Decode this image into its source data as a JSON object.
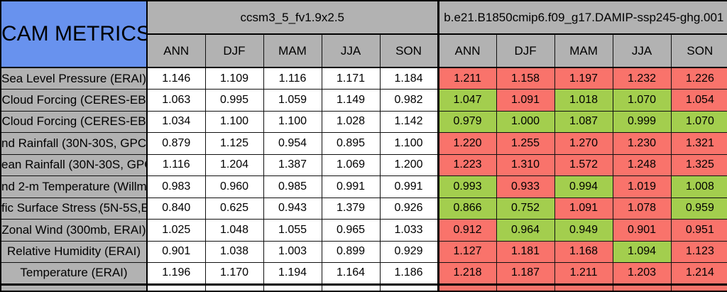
{
  "table": {
    "title": "CAM METRICS",
    "season_columns": [
      "ANN",
      "DJF",
      "MAM",
      "JJA",
      "SON"
    ],
    "groups": [
      {
        "name": "ccsm3_5_fv1.9x2.5"
      },
      {
        "name": "b.e21.B1850cmip6.f09_g17.DAMIP-ssp245-ghg.001"
      }
    ],
    "rows": [
      {
        "label": "Sea Level Pressure (ERAI)",
        "left": [
          "1.146",
          "1.109",
          "1.116",
          "1.171",
          "1.184"
        ],
        "right": [
          "1.211",
          "1.158",
          "1.197",
          "1.232",
          "1.226"
        ],
        "right_flags": [
          "red",
          "red",
          "red",
          "red",
          "red"
        ]
      },
      {
        "label": "Cloud Forcing (CERES-EB",
        "left": [
          "1.063",
          "0.995",
          "1.059",
          "1.149",
          "0.982"
        ],
        "right": [
          "1.047",
          "1.091",
          "1.018",
          "1.070",
          "1.054"
        ],
        "right_flags": [
          "green",
          "red",
          "green",
          "green",
          "red"
        ]
      },
      {
        "label": "Cloud Forcing (CERES-EB",
        "left": [
          "1.034",
          "1.100",
          "1.100",
          "1.028",
          "1.142"
        ],
        "right": [
          "0.979",
          "1.000",
          "1.087",
          "0.999",
          "1.070"
        ],
        "right_flags": [
          "green",
          "green",
          "green",
          "green",
          "green"
        ]
      },
      {
        "label": "nd Rainfall (30N-30S, GPC",
        "left": [
          "0.879",
          "1.125",
          "0.954",
          "0.895",
          "1.100"
        ],
        "right": [
          "1.220",
          "1.255",
          "1.270",
          "1.230",
          "1.321"
        ],
        "right_flags": [
          "red",
          "red",
          "red",
          "red",
          "red"
        ]
      },
      {
        "label": "ean Rainfall (30N-30S, GPC",
        "left": [
          "1.116",
          "1.204",
          "1.387",
          "1.069",
          "1.200"
        ],
        "right": [
          "1.223",
          "1.310",
          "1.572",
          "1.248",
          "1.325"
        ],
        "right_flags": [
          "red",
          "red",
          "red",
          "red",
          "red"
        ]
      },
      {
        "label": "nd 2-m Temperature (Willm",
        "left": [
          "0.983",
          "0.960",
          "0.985",
          "0.991",
          "0.991"
        ],
        "right": [
          "0.993",
          "0.933",
          "0.994",
          "1.019",
          "1.008"
        ],
        "right_flags": [
          "green",
          "red",
          "green",
          "red",
          "green"
        ]
      },
      {
        "label": "fic Surface Stress (5N-5S,E",
        "left": [
          "0.840",
          "0.625",
          "0.943",
          "1.379",
          "0.926"
        ],
        "right": [
          "0.866",
          "0.752",
          "1.091",
          "1.078",
          "0.959"
        ],
        "right_flags": [
          "green",
          "green",
          "red",
          "red",
          "green"
        ]
      },
      {
        "label": "Zonal Wind (300mb, ERAI)",
        "left": [
          "1.025",
          "1.048",
          "1.055",
          "0.965",
          "1.033"
        ],
        "right": [
          "0.912",
          "0.964",
          "0.949",
          "0.901",
          "0.951"
        ],
        "right_flags": [
          "red",
          "green",
          "green",
          "red",
          "red"
        ]
      },
      {
        "label": "Relative Humidity (ERAI)",
        "left": [
          "0.901",
          "1.038",
          "1.003",
          "0.899",
          "0.929"
        ],
        "right": [
          "1.127",
          "1.181",
          "1.168",
          "1.094",
          "1.123"
        ],
        "right_flags": [
          "red",
          "red",
          "red",
          "green",
          "red"
        ]
      },
      {
        "label": "Temperature (ERAI)",
        "left": [
          "1.196",
          "1.170",
          "1.194",
          "1.164",
          "1.186"
        ],
        "right": [
          "1.218",
          "1.187",
          "1.211",
          "1.203",
          "1.214"
        ],
        "right_flags": [
          "red",
          "red",
          "red",
          "red",
          "red"
        ]
      }
    ],
    "partial_bottom_row": {
      "left_flags": [
        "white",
        "white",
        "white",
        "white",
        "white"
      ],
      "right_flags": [
        "red",
        "red",
        "red",
        "red",
        "red"
      ]
    }
  },
  "colors": {
    "flag_red": "#f9736b",
    "flag_green": "#a3ce4e",
    "header_gray": "#b2b2b2",
    "title_blue": "#6892ee",
    "cell_white": "#ffffff"
  }
}
